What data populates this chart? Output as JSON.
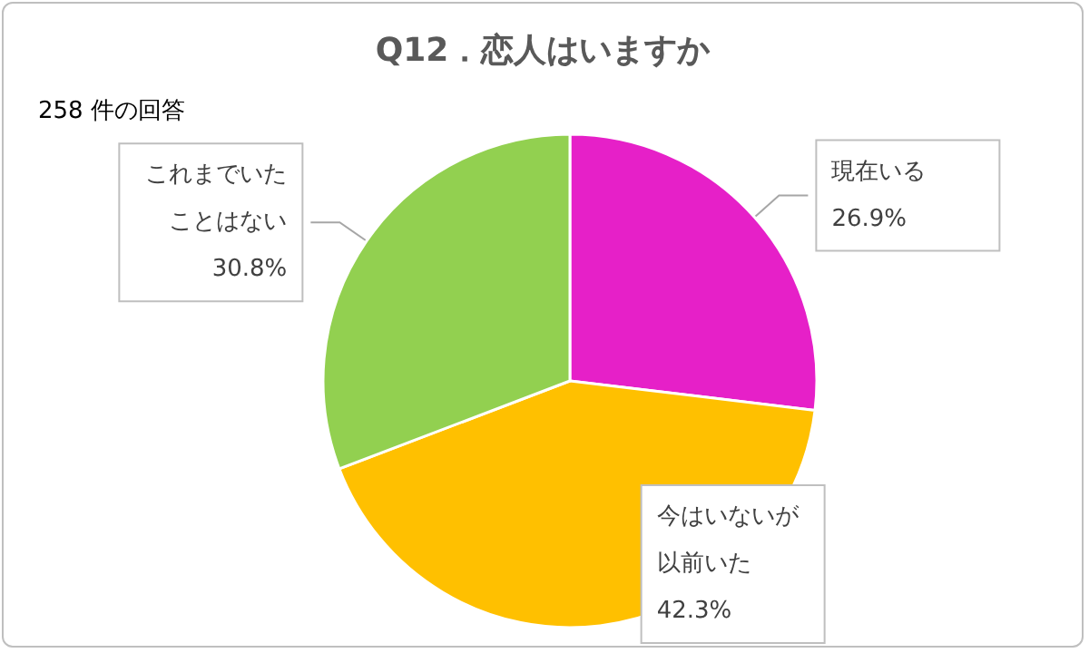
{
  "chart_data": {
    "type": "pie",
    "title": "Q12．恋人はいますか",
    "subtitle": "258 件の回答",
    "categories": [
      "現在いる",
      "今はいないが以前いた",
      "これまでいたことはない"
    ],
    "values": [
      26.9,
      42.3,
      30.8
    ],
    "value_labels": [
      "26.9%",
      "42.3%",
      "30.8%"
    ],
    "colors": [
      "#e620c8",
      "#ffc000",
      "#92d050"
    ],
    "legend": false
  }
}
